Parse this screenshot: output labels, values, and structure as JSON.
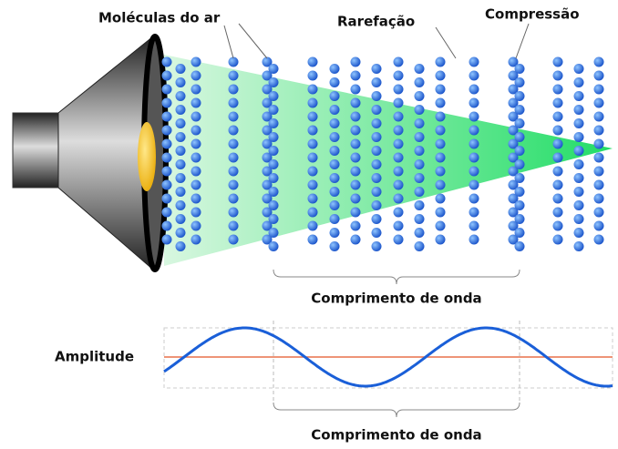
{
  "labels": {
    "molecules": "Moléculas do ar",
    "rarefaction": "Rarefação",
    "compression": "Compressão",
    "wavelength_top": "Comprimento de onda",
    "amplitude": "Amplitude",
    "wavelength_bottom": "Comprimento de onda"
  }
}
